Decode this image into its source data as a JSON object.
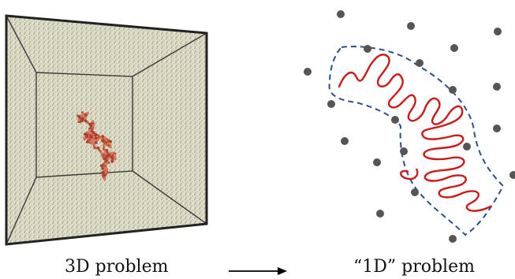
{
  "captions": {
    "left": "3D problem",
    "right": "“1D” problem"
  },
  "colors": {
    "box_frame": "#2b2b2b",
    "solvent_fill": "#d8d8c4",
    "solvent_speckle": "#a9a990",
    "polymer": "#c0533a",
    "chain_line": "#cc1a1a",
    "tube_dash": "#2e4f86",
    "obstacle": "#555555",
    "arrow": "#000000"
  },
  "icons": {
    "left_panel": "3d-simulation-box-with-polymer",
    "right_panel": "polymer-in-tube-among-obstacles",
    "arrow": "right-arrow"
  }
}
